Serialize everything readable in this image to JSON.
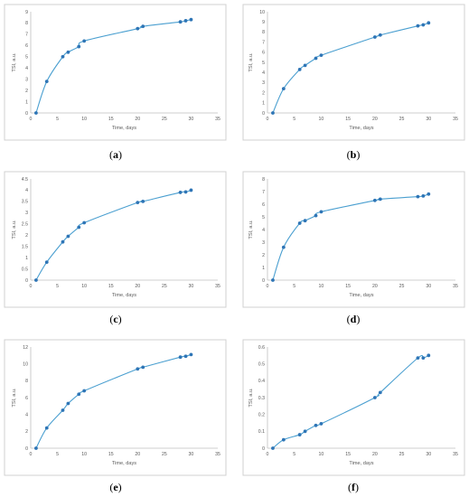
{
  "chart_data": [
    {
      "type": "line",
      "caption_letter": "a",
      "xlabel": "Time, days",
      "ylabel": "TSI, a.u.",
      "xlim": [
        0,
        35
      ],
      "ylim": [
        0,
        9
      ],
      "xticks": [
        "0",
        "5",
        "10",
        "15",
        "20",
        "25",
        "30",
        "35"
      ],
      "yticks": [
        "0",
        "1",
        "2",
        "3",
        "4",
        "5",
        "6",
        "7",
        "8",
        "9"
      ],
      "x": [
        1,
        3,
        6,
        7,
        9,
        10,
        20,
        21,
        28,
        29,
        30
      ],
      "y": [
        0,
        2.8,
        5.0,
        5.4,
        5.9,
        6.4,
        7.5,
        7.7,
        8.1,
        8.2,
        8.3
      ]
    },
    {
      "type": "line",
      "caption_letter": "b",
      "xlabel": "Time, days",
      "ylabel": "TSI, a.u.",
      "xlim": [
        0,
        35
      ],
      "ylim": [
        0,
        10
      ],
      "xticks": [
        "0",
        "5",
        "10",
        "15",
        "20",
        "25",
        "30",
        "35"
      ],
      "yticks": [
        "0",
        "1",
        "2",
        "3",
        "4",
        "5",
        "6",
        "7",
        "8",
        "9",
        "10"
      ],
      "x": [
        1,
        3,
        6,
        7,
        9,
        10,
        20,
        21,
        28,
        29,
        30
      ],
      "y": [
        0,
        2.4,
        4.3,
        4.7,
        5.4,
        5.7,
        7.5,
        7.7,
        8.6,
        8.7,
        8.9
      ]
    },
    {
      "type": "line",
      "caption_letter": "c",
      "xlabel": "Time, days",
      "ylabel": "TSI, a.u.",
      "xlim": [
        0,
        35
      ],
      "ylim": [
        0,
        4.5
      ],
      "xticks": [
        "0",
        "5",
        "10",
        "15",
        "20",
        "25",
        "30",
        "35"
      ],
      "yticks": [
        "0",
        "0.5",
        "1",
        "1.5",
        "2",
        "2.5",
        "3",
        "3.5",
        "4",
        "4.5"
      ],
      "x": [
        1,
        3,
        6,
        7,
        9,
        10,
        20,
        21,
        28,
        29,
        30
      ],
      "y": [
        0,
        0.8,
        1.7,
        1.95,
        2.35,
        2.55,
        3.45,
        3.5,
        3.9,
        3.92,
        4.0
      ]
    },
    {
      "type": "line",
      "caption_letter": "d",
      "xlabel": "Time, days",
      "ylabel": "TSI, a.u.",
      "xlim": [
        0,
        35
      ],
      "ylim": [
        0,
        8
      ],
      "xticks": [
        "0",
        "5",
        "10",
        "15",
        "20",
        "25",
        "30",
        "35"
      ],
      "yticks": [
        "0",
        "1",
        "2",
        "3",
        "4",
        "5",
        "6",
        "7",
        "8"
      ],
      "x": [
        1,
        3,
        6,
        7,
        9,
        10,
        20,
        21,
        28,
        29,
        30
      ],
      "y": [
        0,
        2.6,
        4.5,
        4.7,
        5.1,
        5.4,
        6.3,
        6.4,
        6.6,
        6.65,
        6.8
      ]
    },
    {
      "type": "line",
      "caption_letter": "e",
      "xlabel": "Time, days",
      "ylabel": "TSI, a.u.",
      "xlim": [
        0,
        35
      ],
      "ylim": [
        0,
        12
      ],
      "xticks": [
        "0",
        "5",
        "10",
        "15",
        "20",
        "25",
        "30",
        "35"
      ],
      "yticks": [
        "0",
        "2",
        "4",
        "6",
        "8",
        "10",
        "12"
      ],
      "x": [
        1,
        3,
        6,
        7,
        9,
        10,
        20,
        21,
        28,
        29,
        30
      ],
      "y": [
        0,
        2.4,
        4.5,
        5.3,
        6.4,
        6.8,
        9.4,
        9.6,
        10.8,
        10.9,
        11.1
      ]
    },
    {
      "type": "line",
      "caption_letter": "f",
      "xlabel": "Time, days",
      "ylabel": "TSI, a.u.",
      "xlim": [
        0,
        35
      ],
      "ylim": [
        0,
        0.6
      ],
      "xticks": [
        "0",
        "5",
        "10",
        "15",
        "20",
        "25",
        "30",
        "35"
      ],
      "yticks": [
        "0",
        "0.1",
        "0.2",
        "0.3",
        "0.4",
        "0.5",
        "0.6"
      ],
      "x": [
        1,
        3,
        6,
        7,
        9,
        10,
        20,
        21,
        28,
        29,
        30
      ],
      "y": [
        0,
        0.05,
        0.08,
        0.1,
        0.135,
        0.145,
        0.3,
        0.33,
        0.535,
        0.535,
        0.55
      ]
    }
  ],
  "style": {
    "line_color": "#4a9fd0",
    "marker_color": "#2e75b6",
    "axis_color": "#bfbfbf",
    "text_color": "#595959"
  }
}
